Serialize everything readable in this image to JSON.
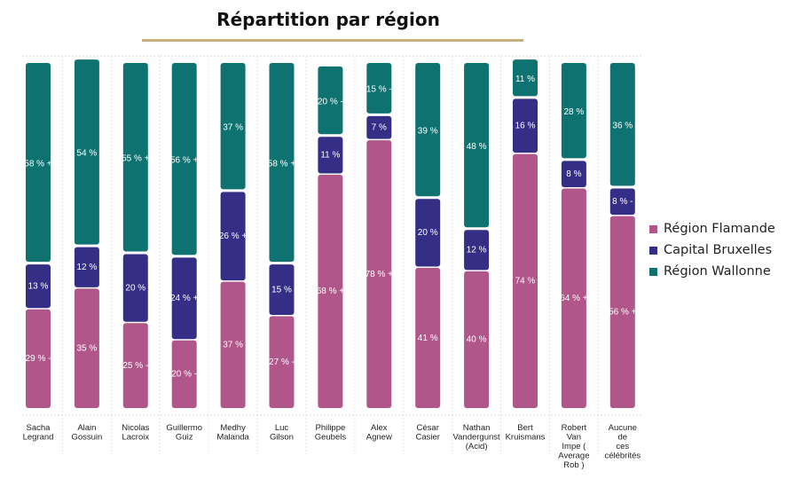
{
  "chart_data": {
    "type": "bar",
    "stacked": true,
    "title": "Répartition par région",
    "categories": [
      [
        "Sacha",
        "Legrand"
      ],
      [
        "Alain",
        "Gossuin"
      ],
      [
        "Nicolas",
        "Lacroix"
      ],
      [
        "Guillermo",
        "Guiz"
      ],
      [
        "Medhy",
        "Malanda"
      ],
      [
        "Luc",
        "Gilson"
      ],
      [
        "Philippe",
        "Geubels"
      ],
      [
        "Alex",
        "Agnew"
      ],
      [
        "César",
        "Casier"
      ],
      [
        "Nathan",
        "Vandergunst",
        "(Acid)"
      ],
      [
        "Bert",
        "Kruismans"
      ],
      [
        "Robert",
        "Van",
        "Impe (",
        "Average",
        "Rob )"
      ],
      [
        "Aucune",
        "de",
        "ces",
        "célébrités"
      ]
    ],
    "series": [
      {
        "name": "Région Flamande",
        "color": "#b0568a",
        "values": [
          29,
          35,
          25,
          20,
          37,
          27,
          68,
          78,
          41,
          40,
          74,
          64,
          56
        ],
        "labels": [
          "29 % -",
          "35 %",
          "25 % -",
          "20 % -",
          "37 %",
          "27 % -",
          "68 % +",
          "78 % +",
          "41 %",
          "40 %",
          "74 %",
          "64 % +",
          "56 % +"
        ]
      },
      {
        "name": "Capital Bruxelles",
        "color": "#342e86",
        "values": [
          13,
          12,
          20,
          24,
          26,
          15,
          11,
          7,
          20,
          12,
          16,
          8,
          8
        ],
        "labels": [
          "13 %",
          "12 %",
          "20 %",
          "24 % +",
          "26 % +",
          "15 %",
          "11 %",
          "7 %",
          "20 %",
          "12 %",
          "16 %",
          "8 %",
          "8 % -"
        ]
      },
      {
        "name": "Région Wallonne",
        "color": "#0e7370",
        "values": [
          58,
          54,
          55,
          56,
          37,
          58,
          20,
          15,
          39,
          48,
          11,
          28,
          36
        ],
        "labels": [
          "58 % +",
          "54 %",
          "55 % +",
          "56 % +",
          "37 %",
          "58 % +",
          "20 % -",
          "15 % -",
          "39 %",
          "48 %",
          "11 %",
          "28 %",
          "36 %"
        ]
      }
    ],
    "ylim": [
      0,
      100
    ],
    "legend": "right"
  }
}
